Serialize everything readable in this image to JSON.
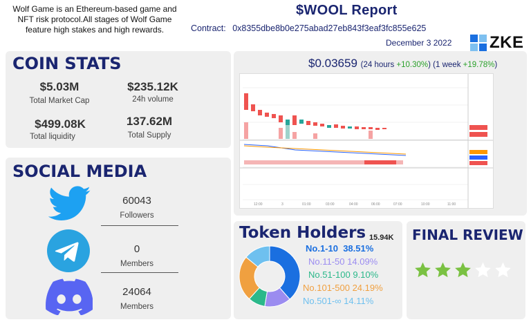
{
  "intro": "Wolf Game is an Ethereum-based game and NFT risk protocol.All stages of Wolf Game feature high stakes and high rewards.",
  "report": {
    "title": "$WOOL  Report",
    "contract_label": "Contract:",
    "contract_address": "0x8355dbe8b0e275abad27eb843f3eaf3fc855e625",
    "date": "December 3 2022",
    "logo_text": "ZKE"
  },
  "coin_stats": {
    "heading": "COIN STATS",
    "items": [
      {
        "value": "$5.03M",
        "label": "Total Market Cap"
      },
      {
        "value": "$235.12K",
        "label": "24h volume"
      },
      {
        "value": "$499.08K",
        "label": "Total liquidity"
      },
      {
        "value": "137.62M",
        "label": "Total Supply"
      }
    ]
  },
  "price": {
    "value": "$0.03659",
    "change_24h_prefix": "(24 hours ",
    "change_24h": "+10.30%",
    "change_1w_prefix": ") (1 week ",
    "change_1w": "+19.78%",
    "suffix": ")"
  },
  "social": {
    "heading": "SOCIAL MEDIA",
    "items": [
      {
        "icon": "twitter-icon",
        "count": "60043",
        "label": "Followers",
        "color": "#1da1f2"
      },
      {
        "icon": "telegram-icon",
        "count": "0",
        "label": "Members",
        "color": "#2aa3e0"
      },
      {
        "icon": "discord-icon",
        "count": "24064",
        "label": "Members",
        "color": "#5865f2"
      }
    ]
  },
  "token_holders": {
    "heading": "Token Holders",
    "total": "15.94K",
    "segments": [
      {
        "label": "No.1-10",
        "pct": "38.51%",
        "value": 38.51,
        "color": "#1a6fe0"
      },
      {
        "label": "No.11-50",
        "pct": "14.09%",
        "value": 14.09,
        "color": "#9b8cf0"
      },
      {
        "label": "No.51-100",
        "pct": "9.10%",
        "value": 9.1,
        "color": "#2bb88a"
      },
      {
        "label": "No.101-500",
        "pct": "24.19%",
        "value": 24.19,
        "color": "#f0a040"
      },
      {
        "label": "No.501-∞",
        "pct": "14.11%",
        "value": 14.11,
        "color": "#6ec0ef"
      }
    ]
  },
  "final_review": {
    "heading": "FINAL REVIEW",
    "rating": 3,
    "max": 5,
    "star_color": "#7ac142"
  }
}
